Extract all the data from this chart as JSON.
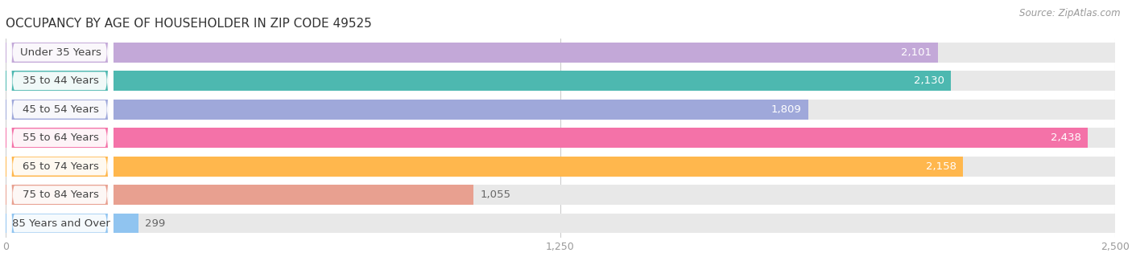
{
  "title": "OCCUPANCY BY AGE OF HOUSEHOLDER IN ZIP CODE 49525",
  "source": "Source: ZipAtlas.com",
  "categories": [
    "Under 35 Years",
    "35 to 44 Years",
    "45 to 54 Years",
    "55 to 64 Years",
    "65 to 74 Years",
    "75 to 84 Years",
    "85 Years and Over"
  ],
  "values": [
    2101,
    2130,
    1809,
    2438,
    2158,
    1055,
    299
  ],
  "bar_colors": [
    "#c3a8d8",
    "#4db8b0",
    "#9fa8da",
    "#f472a8",
    "#ffb74d",
    "#e8a090",
    "#90c4f0"
  ],
  "bar_bg_colors": [
    "#e8e8e8",
    "#e8e8e8",
    "#e8e8e8",
    "#e8e8e8",
    "#e8e8e8",
    "#e8e8e8",
    "#e8e8e8"
  ],
  "xlim": [
    0,
    2500
  ],
  "xticks": [
    0,
    1250,
    2500
  ],
  "xticklabels": [
    "0",
    "1,250",
    "2,500"
  ],
  "title_fontsize": 11,
  "label_fontsize": 9.5,
  "value_fontsize": 9.5,
  "background_color": "#ffffff",
  "plot_bg_color": "#f5f5f5"
}
